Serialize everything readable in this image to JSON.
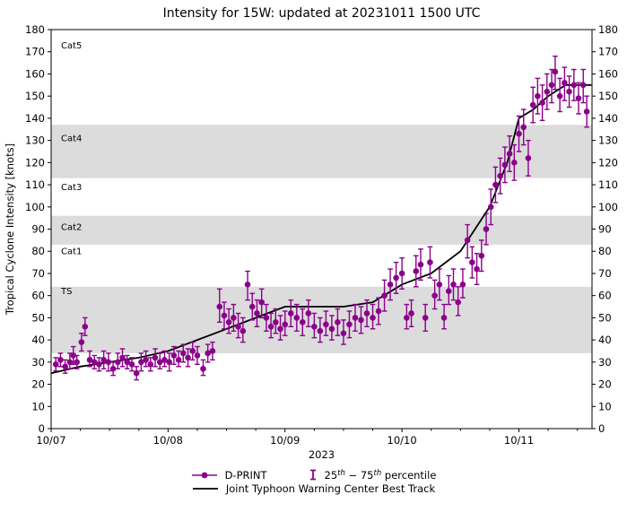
{
  "title": "Intensity for 15W: updated at 20231011 1500 UTC",
  "chart_data": {
    "type": "scatter",
    "title": "Intensity for 15W: updated at 20231011 1500 UTC",
    "xlabel": "2023",
    "ylabel": "Tropical Cyclone Intensity [knots]",
    "ylim": [
      0,
      180
    ],
    "ytick_step": 10,
    "xlim_days": [
      0,
      4.625
    ],
    "x_ticks": [
      {
        "pos": 0,
        "label": "10/07"
      },
      {
        "pos": 1,
        "label": "10/08"
      },
      {
        "pos": 2,
        "label": "10/09"
      },
      {
        "pos": 3,
        "label": "10/10"
      },
      {
        "pos": 4,
        "label": "10/11"
      }
    ],
    "x_minor_step": 0.25,
    "band_color": "#dcdcdc",
    "bands": [
      {
        "name": "Cat5",
        "from": 137,
        "to": 180,
        "shaded": false,
        "label_y": 173
      },
      {
        "name": "Cat4",
        "from": 113,
        "to": 137,
        "shaded": true,
        "label_y": 131
      },
      {
        "name": "Cat3",
        "from": 96,
        "to": 113,
        "shaded": false,
        "label_y": 109
      },
      {
        "name": "Cat2",
        "from": 83,
        "to": 96,
        "shaded": true,
        "label_y": 91
      },
      {
        "name": "Cat1",
        "from": 64,
        "to": 83,
        "shaded": false,
        "label_y": 80
      },
      {
        "name": "TS",
        "from": 34,
        "to": 64,
        "shaded": true,
        "label_y": 62
      }
    ],
    "series": [
      {
        "name": "D-PRINT",
        "type": "errorbar-scatter",
        "color": "#8b008b",
        "points": [
          [
            0.04,
            29,
            26,
            32
          ],
          [
            0.08,
            31,
            28,
            34
          ],
          [
            0.12,
            28,
            25,
            31
          ],
          [
            0.16,
            30,
            27,
            34
          ],
          [
            0.19,
            33,
            29,
            37
          ],
          [
            0.22,
            30,
            27,
            33
          ],
          [
            0.26,
            39,
            35,
            43
          ],
          [
            0.29,
            46,
            42,
            50
          ],
          [
            0.33,
            31,
            28,
            35
          ],
          [
            0.37,
            30,
            27,
            33
          ],
          [
            0.41,
            29,
            26,
            32
          ],
          [
            0.45,
            31,
            27,
            35
          ],
          [
            0.49,
            30,
            26,
            34
          ],
          [
            0.53,
            27,
            24,
            30
          ],
          [
            0.57,
            30,
            27,
            34
          ],
          [
            0.61,
            32,
            28,
            36
          ],
          [
            0.65,
            30,
            27,
            33
          ],
          [
            0.69,
            29,
            26,
            32
          ],
          [
            0.73,
            25,
            22,
            28
          ],
          [
            0.77,
            30,
            26,
            34
          ],
          [
            0.81,
            31,
            28,
            35
          ],
          [
            0.85,
            29,
            26,
            32
          ],
          [
            0.89,
            32,
            28,
            36
          ],
          [
            0.93,
            30,
            27,
            34
          ],
          [
            0.97,
            31,
            28,
            35
          ],
          [
            1.01,
            30,
            26,
            34
          ],
          [
            1.05,
            33,
            29,
            37
          ],
          [
            1.09,
            31,
            28,
            35
          ],
          [
            1.13,
            34,
            30,
            38
          ],
          [
            1.17,
            32,
            28,
            36
          ],
          [
            1.21,
            35,
            31,
            39
          ],
          [
            1.25,
            33,
            29,
            37
          ],
          [
            1.3,
            27,
            24,
            31
          ],
          [
            1.34,
            34,
            30,
            38
          ],
          [
            1.38,
            35,
            31,
            39
          ],
          [
            1.44,
            55,
            48,
            63
          ],
          [
            1.48,
            51,
            45,
            57
          ],
          [
            1.52,
            48,
            43,
            54
          ],
          [
            1.56,
            50,
            44,
            56
          ],
          [
            1.6,
            46,
            41,
            52
          ],
          [
            1.64,
            44,
            39,
            50
          ],
          [
            1.68,
            65,
            58,
            71
          ],
          [
            1.72,
            55,
            49,
            61
          ],
          [
            1.76,
            52,
            46,
            58
          ],
          [
            1.8,
            57,
            50,
            63
          ],
          [
            1.84,
            50,
            44,
            56
          ],
          [
            1.88,
            46,
            41,
            52
          ],
          [
            1.92,
            48,
            43,
            54
          ],
          [
            1.96,
            45,
            40,
            51
          ],
          [
            2.0,
            47,
            42,
            53
          ],
          [
            2.05,
            52,
            46,
            58
          ],
          [
            2.1,
            50,
            44,
            56
          ],
          [
            2.15,
            48,
            42,
            54
          ],
          [
            2.2,
            52,
            46,
            58
          ],
          [
            2.25,
            46,
            41,
            52
          ],
          [
            2.3,
            44,
            39,
            50
          ],
          [
            2.35,
            47,
            42,
            53
          ],
          [
            2.4,
            45,
            40,
            51
          ],
          [
            2.45,
            48,
            42,
            54
          ],
          [
            2.5,
            43,
            38,
            49
          ],
          [
            2.55,
            47,
            41,
            53
          ],
          [
            2.6,
            50,
            44,
            56
          ],
          [
            2.65,
            49,
            43,
            55
          ],
          [
            2.7,
            52,
            46,
            58
          ],
          [
            2.75,
            50,
            45,
            56
          ],
          [
            2.8,
            53,
            47,
            59
          ],
          [
            2.85,
            60,
            53,
            67
          ],
          [
            2.9,
            65,
            58,
            72
          ],
          [
            2.95,
            68,
            61,
            75
          ],
          [
            3.0,
            70,
            63,
            77
          ],
          [
            3.04,
            50,
            45,
            56
          ],
          [
            3.08,
            52,
            46,
            58
          ],
          [
            3.12,
            71,
            64,
            78
          ],
          [
            3.16,
            74,
            67,
            81
          ],
          [
            3.2,
            50,
            44,
            56
          ],
          [
            3.24,
            75,
            68,
            82
          ],
          [
            3.28,
            60,
            54,
            67
          ],
          [
            3.32,
            65,
            58,
            72
          ],
          [
            3.36,
            50,
            45,
            56
          ],
          [
            3.4,
            62,
            56,
            69
          ],
          [
            3.44,
            65,
            58,
            72
          ],
          [
            3.48,
            57,
            51,
            64
          ],
          [
            3.52,
            65,
            59,
            72
          ],
          [
            3.56,
            85,
            77,
            92
          ],
          [
            3.6,
            75,
            68,
            82
          ],
          [
            3.64,
            72,
            65,
            79
          ],
          [
            3.68,
            78,
            71,
            85
          ],
          [
            3.72,
            90,
            83,
            97
          ],
          [
            3.76,
            100,
            92,
            108
          ],
          [
            3.8,
            110,
            102,
            118
          ],
          [
            3.84,
            114,
            106,
            122
          ],
          [
            3.88,
            119,
            111,
            127
          ],
          [
            3.92,
            124,
            116,
            132
          ],
          [
            3.96,
            120,
            112,
            128
          ],
          [
            4.0,
            133,
            125,
            141
          ],
          [
            4.04,
            136,
            128,
            144
          ],
          [
            4.08,
            122,
            114,
            130
          ],
          [
            4.12,
            146,
            138,
            154
          ],
          [
            4.16,
            150,
            142,
            158
          ],
          [
            4.2,
            147,
            139,
            155
          ],
          [
            4.24,
            152,
            144,
            160
          ],
          [
            4.28,
            155,
            147,
            162
          ],
          [
            4.31,
            161,
            153,
            168
          ],
          [
            4.35,
            150,
            143,
            158
          ],
          [
            4.39,
            156,
            148,
            163
          ],
          [
            4.43,
            152,
            145,
            159
          ],
          [
            4.47,
            155,
            148,
            162
          ],
          [
            4.51,
            149,
            142,
            156
          ],
          [
            4.55,
            155,
            147,
            162
          ],
          [
            4.58,
            143,
            136,
            150
          ]
        ]
      },
      {
        "name": "Joint Typhoon Warning Center Best Track",
        "type": "line",
        "color": "#000000",
        "points": [
          [
            0,
            25
          ],
          [
            0.25,
            28
          ],
          [
            0.5,
            30
          ],
          [
            0.75,
            32
          ],
          [
            1,
            35
          ],
          [
            1.25,
            40
          ],
          [
            1.5,
            45
          ],
          [
            1.75,
            50
          ],
          [
            2,
            55
          ],
          [
            2.25,
            55
          ],
          [
            2.5,
            55
          ],
          [
            2.75,
            57
          ],
          [
            3,
            65
          ],
          [
            3.25,
            70
          ],
          [
            3.5,
            80
          ],
          [
            3.75,
            100
          ],
          [
            3.9,
            120
          ],
          [
            4,
            140
          ],
          [
            4.125,
            144
          ],
          [
            4.25,
            150
          ],
          [
            4.4,
            155
          ],
          [
            4.62,
            155
          ]
        ]
      }
    ],
    "legend": {
      "percentile": {
        "pre": "25",
        "sup1": "th",
        "mid": " − 75",
        "sup2": "th",
        "post": " percentile"
      }
    }
  }
}
